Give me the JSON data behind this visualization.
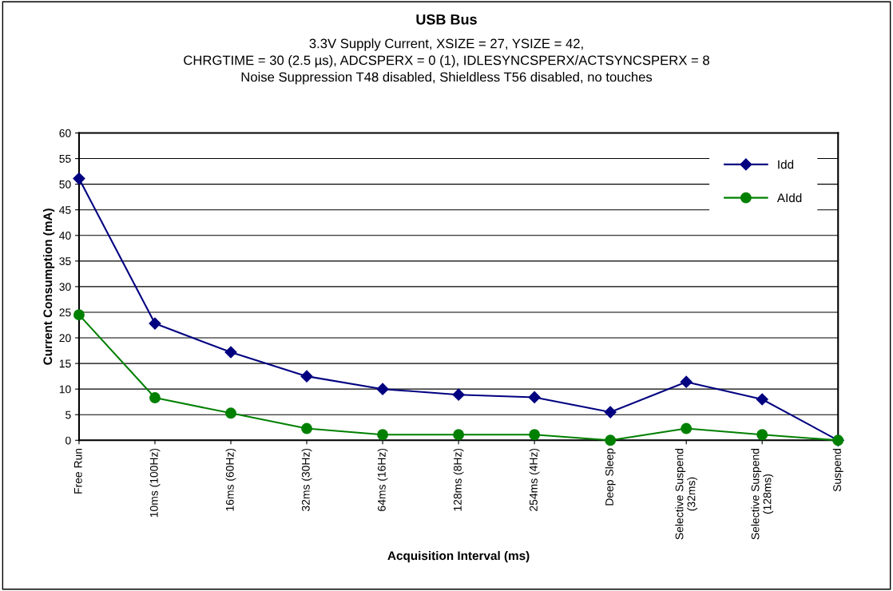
{
  "chart_data": {
    "type": "line",
    "title": "USB Bus",
    "subtitle": "3.3V Supply Current, XSIZE = 27, YSIZE = 42,\nCHRGTIME = 30 (2.5 µs), ADCSPERX = 0 (1), IDLESYNCSPERX/ACTSYNCSPERX = 8\nNoise Suppression T48 disabled, Shieldless T56 disabled, no touches",
    "xlabel": "Acquisition Interval (ms)",
    "ylabel": "Current Consumption (mA)",
    "categories": [
      "Free Run",
      "10ms (100Hz)",
      "16ms (60Hz)",
      "32ms (30Hz)",
      "64ms (16Hz)",
      "128ms (8Hz)",
      "254ms (4Hz)",
      "Deep Sleep",
      "Selective Suspend\n(32ms)",
      "Selective Suspend\n(128ms)",
      "Suspend"
    ],
    "series": [
      {
        "name": "Idd",
        "color": "#000080",
        "marker": "diamond",
        "values": [
          51.1,
          22.8,
          17.2,
          12.5,
          10.0,
          8.9,
          8.4,
          5.5,
          11.4,
          8.0,
          0
        ]
      },
      {
        "name": "AIdd",
        "color": "#008000",
        "marker": "circle",
        "values": [
          24.5,
          8.3,
          5.3,
          2.3,
          1.1,
          1.1,
          1.1,
          0,
          2.3,
          1.1,
          0
        ]
      }
    ],
    "ylim": [
      0,
      60
    ],
    "yticks": [
      0,
      5,
      10,
      15,
      20,
      25,
      30,
      35,
      40,
      45,
      50,
      55,
      60
    ],
    "grid": "y",
    "legend": "top right",
    "line_style": "solid"
  }
}
